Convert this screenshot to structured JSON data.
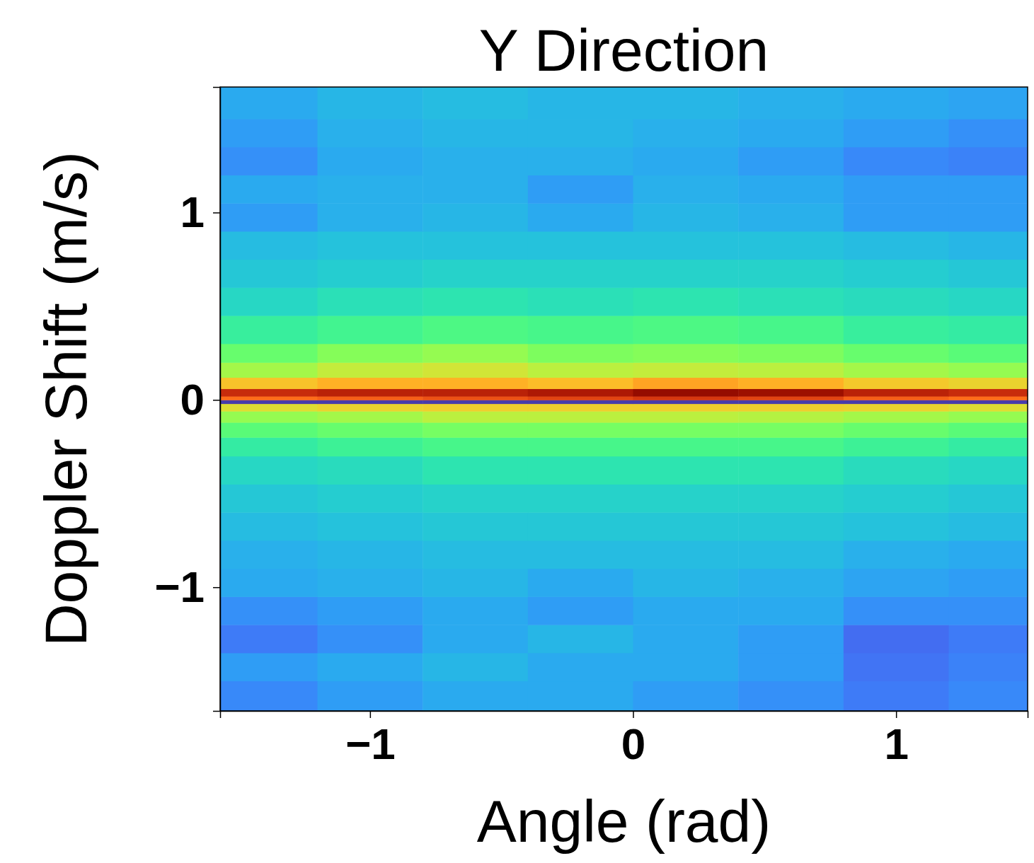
{
  "chart_data": {
    "type": "heatmap",
    "title": "Y Direction",
    "xlabel": "Angle (rad)",
    "ylabel": "Doppler Shift (m/s)",
    "xlim": [
      -1.57,
      1.5
    ],
    "ylim": [
      -1.66,
      1.67
    ],
    "xticks": [
      {
        "value": -1,
        "label": "−1"
      },
      0,
      1
    ],
    "yticks": [
      {
        "value": -1,
        "label": "−1"
      },
      0,
      1
    ],
    "x_edges": [
      -1.57,
      -1.2,
      -0.8,
      -0.4,
      0,
      0.4,
      0.8,
      1.2,
      1.5
    ],
    "y_edges": [
      -1.66,
      -1.5,
      -1.35,
      -1.2,
      -1.05,
      -0.9,
      -0.75,
      -0.6,
      -0.45,
      -0.3,
      -0.2,
      -0.12,
      -0.06,
      -0.02,
      0,
      0.02,
      0.06,
      0.12,
      0.2,
      0.3,
      0.45,
      0.6,
      0.75,
      0.9,
      1.05,
      1.2,
      1.35,
      1.5,
      1.67
    ],
    "z": [
      [
        0.17,
        0.2,
        0.22,
        0.22,
        0.2,
        0.18,
        0.15,
        0.17
      ],
      [
        0.2,
        0.22,
        0.24,
        0.22,
        0.22,
        0.2,
        0.14,
        0.16
      ],
      [
        0.15,
        0.18,
        0.22,
        0.24,
        0.22,
        0.2,
        0.13,
        0.15
      ],
      [
        0.18,
        0.2,
        0.22,
        0.2,
        0.22,
        0.22,
        0.18,
        0.18
      ],
      [
        0.22,
        0.23,
        0.24,
        0.22,
        0.24,
        0.23,
        0.21,
        0.2
      ],
      [
        0.23,
        0.24,
        0.25,
        0.25,
        0.25,
        0.25,
        0.23,
        0.22
      ],
      [
        0.25,
        0.26,
        0.27,
        0.27,
        0.27,
        0.27,
        0.26,
        0.25
      ],
      [
        0.27,
        0.28,
        0.29,
        0.29,
        0.29,
        0.29,
        0.28,
        0.27
      ],
      [
        0.3,
        0.31,
        0.33,
        0.33,
        0.33,
        0.33,
        0.31,
        0.3
      ],
      [
        0.35,
        0.37,
        0.39,
        0.39,
        0.39,
        0.39,
        0.37,
        0.35
      ],
      [
        0.42,
        0.44,
        0.46,
        0.46,
        0.46,
        0.46,
        0.44,
        0.42
      ],
      [
        0.5,
        0.52,
        0.55,
        0.55,
        0.55,
        0.54,
        0.52,
        0.5
      ],
      [
        0.6,
        0.62,
        0.63,
        0.63,
        0.63,
        0.63,
        0.62,
        0.6
      ],
      [
        0.06,
        0.06,
        0.06,
        0.06,
        0.06,
        0.06,
        0.06,
        0.06
      ],
      [
        0.78,
        0.8,
        0.82,
        0.84,
        0.86,
        0.84,
        0.8,
        0.78
      ],
      [
        0.88,
        0.9,
        0.9,
        0.92,
        0.97,
        0.95,
        0.9,
        0.88
      ],
      [
        0.65,
        0.68,
        0.68,
        0.66,
        0.7,
        0.68,
        0.64,
        0.62
      ],
      [
        0.52,
        0.56,
        0.58,
        0.55,
        0.56,
        0.55,
        0.52,
        0.5
      ],
      [
        0.44,
        0.48,
        0.5,
        0.47,
        0.48,
        0.47,
        0.44,
        0.42
      ],
      [
        0.36,
        0.38,
        0.4,
        0.39,
        0.4,
        0.39,
        0.36,
        0.35
      ],
      [
        0.3,
        0.32,
        0.33,
        0.32,
        0.33,
        0.32,
        0.31,
        0.3
      ],
      [
        0.27,
        0.28,
        0.29,
        0.29,
        0.29,
        0.29,
        0.28,
        0.27
      ],
      [
        0.25,
        0.26,
        0.26,
        0.26,
        0.26,
        0.26,
        0.25,
        0.24
      ],
      [
        0.2,
        0.23,
        0.24,
        0.22,
        0.24,
        0.23,
        0.2,
        0.2
      ],
      [
        0.22,
        0.23,
        0.23,
        0.2,
        0.23,
        0.22,
        0.2,
        0.2
      ],
      [
        0.18,
        0.22,
        0.23,
        0.23,
        0.22,
        0.2,
        0.17,
        0.16
      ],
      [
        0.2,
        0.23,
        0.24,
        0.24,
        0.23,
        0.22,
        0.2,
        0.18
      ],
      [
        0.22,
        0.24,
        0.25,
        0.24,
        0.24,
        0.23,
        0.22,
        0.21
      ]
    ]
  }
}
